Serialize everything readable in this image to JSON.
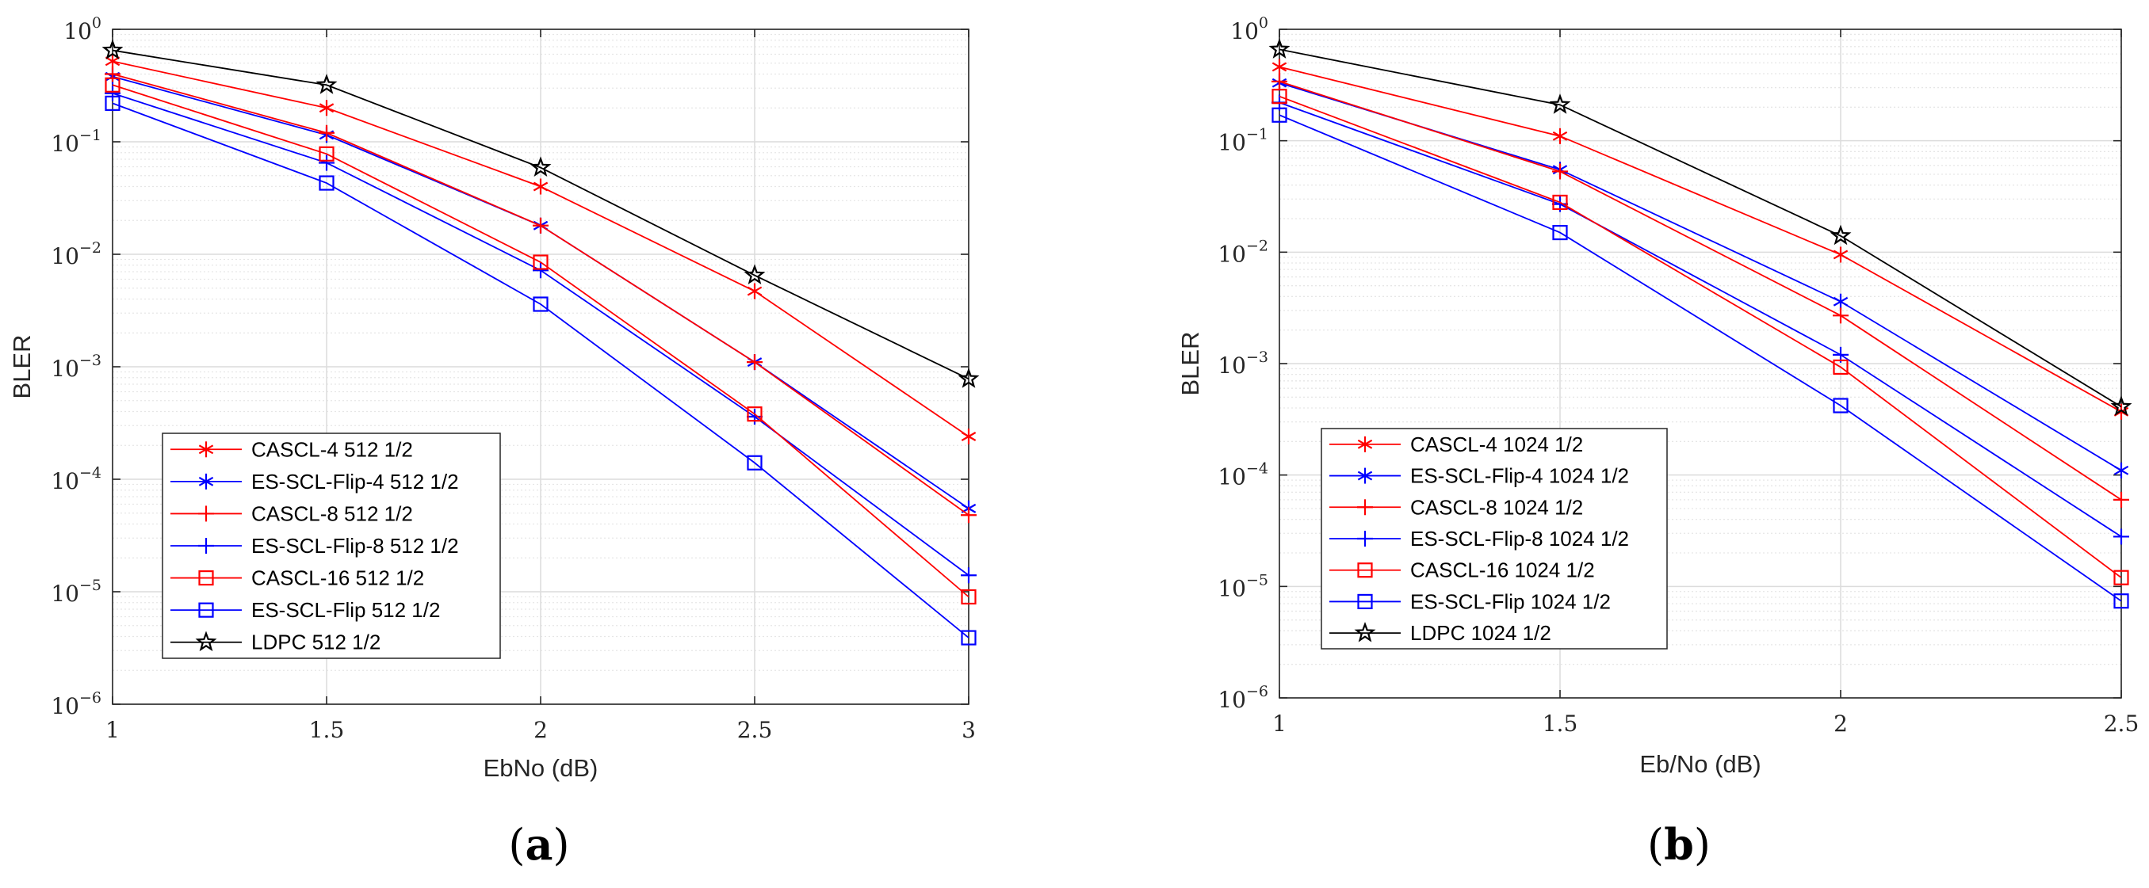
{
  "chart_data": [
    {
      "type": "line",
      "panel_label": "a",
      "xlabel": "EbNo (dB)",
      "ylabel": "BLER",
      "yscale": "log",
      "xlim": [
        1,
        3
      ],
      "ylim": [
        1e-06,
        1
      ],
      "x_ticks": [
        "1",
        "1.5",
        "2",
        "2.5",
        "3"
      ],
      "y_tick_base": "10",
      "y_tick_exponents": [
        "0",
        "−1",
        "−2",
        "−3",
        "−4",
        "−5",
        "−6"
      ],
      "grid": true,
      "legend_position": "bottom-left",
      "x": [
        1,
        1.5,
        2,
        2.5,
        3
      ],
      "series": [
        {
          "name": "CASCL-4 512 1/2",
          "color": "#ff0000",
          "marker": "asterisk",
          "values": [
            0.52,
            0.2,
            0.04,
            0.0047,
            0.00024
          ]
        },
        {
          "name": "ES-SCL-Flip-4 512 1/2",
          "color": "#0000ff",
          "marker": "asterisk",
          "values": [
            0.38,
            0.115,
            0.018,
            0.0011,
            5.5e-05
          ]
        },
        {
          "name": "CASCL-8 512 1/2",
          "color": "#ff0000",
          "marker": "plus",
          "values": [
            0.4,
            0.12,
            0.018,
            0.0011,
            4.8e-05
          ]
        },
        {
          "name": "ES-SCL-Flip-8 512 1/2",
          "color": "#0000ff",
          "marker": "plus",
          "values": [
            0.27,
            0.065,
            0.0072,
            0.00036,
            1.4e-05
          ]
        },
        {
          "name": "CASCL-16 512 1/2",
          "color": "#ff0000",
          "marker": "square",
          "values": [
            0.32,
            0.078,
            0.0085,
            0.00038,
            9e-06
          ]
        },
        {
          "name": "ES-SCL-Flip 512 1/2",
          "color": "#0000ff",
          "marker": "square",
          "values": [
            0.22,
            0.043,
            0.0036,
            0.00014,
            3.9e-06
          ]
        },
        {
          "name": "LDPC 512 1/2",
          "color": "#000000",
          "marker": "star",
          "values": [
            0.65,
            0.32,
            0.059,
            0.0065,
            0.00078
          ]
        }
      ]
    },
    {
      "type": "line",
      "panel_label": "b",
      "xlabel": "Eb/No (dB)",
      "ylabel": "BLER",
      "yscale": "log",
      "xlim": [
        1,
        2.5
      ],
      "ylim": [
        1e-06,
        1
      ],
      "x_ticks": [
        "1",
        "1.5",
        "2",
        "2.5"
      ],
      "y_tick_base": "10",
      "y_tick_exponents": [
        "0",
        "−1",
        "−2",
        "−3",
        "−4",
        "−5",
        "−6"
      ],
      "grid": true,
      "legend_position": "bottom-left",
      "x": [
        1,
        1.5,
        2,
        2.5
      ],
      "series": [
        {
          "name": "CASCL-4 1024 1/2",
          "color": "#ff0000",
          "marker": "asterisk",
          "values": [
            0.46,
            0.11,
            0.0095,
            0.00037
          ]
        },
        {
          "name": "ES-SCL-Flip-4 1024 1/2",
          "color": "#0000ff",
          "marker": "asterisk",
          "values": [
            0.33,
            0.055,
            0.0036,
            0.00011
          ]
        },
        {
          "name": "CASCL-8 1024 1/2",
          "color": "#ff0000",
          "marker": "plus",
          "values": [
            0.34,
            0.053,
            0.0027,
            6e-05
          ]
        },
        {
          "name": "ES-SCL-Flip-8 1024 1/2",
          "color": "#0000ff",
          "marker": "plus",
          "values": [
            0.22,
            0.027,
            0.0012,
            2.8e-05
          ]
        },
        {
          "name": "CASCL-16 1024 1/2",
          "color": "#ff0000",
          "marker": "square",
          "values": [
            0.25,
            0.028,
            0.00093,
            1.2e-05
          ]
        },
        {
          "name": "ES-SCL-Flip 1024 1/2",
          "color": "#0000ff",
          "marker": "square",
          "values": [
            0.17,
            0.015,
            0.00042,
            7.4e-06
          ]
        },
        {
          "name": "LDPC 1024 1/2",
          "color": "#000000",
          "marker": "star",
          "values": [
            0.66,
            0.21,
            0.014,
            0.00041
          ]
        }
      ]
    }
  ]
}
